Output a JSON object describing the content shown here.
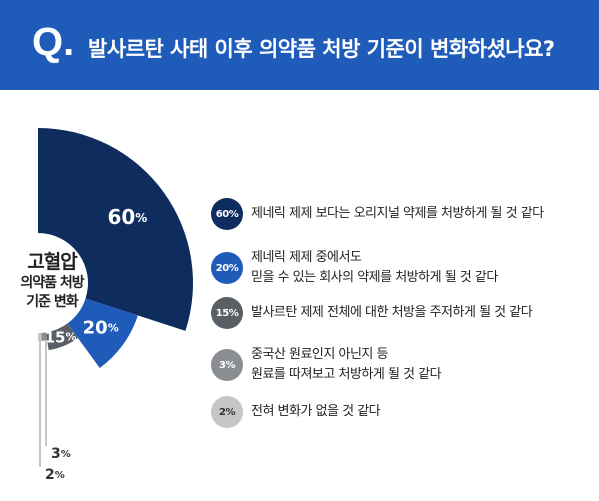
{
  "header": {
    "q_mark": "Q.",
    "title": "발사르탄 사태 이후 의약품 처방 기준이 변화하셨나요?"
  },
  "colors": {
    "header_bg": "#1f5cba",
    "series": [
      "#0e2c5e",
      "#1f5cba",
      "#5a5f66",
      "#8a8d91",
      "#c4c6c8"
    ]
  },
  "chart_data": {
    "type": "pie",
    "center_label": {
      "line1": "고혈압",
      "line2": "의약품 처방",
      "line3": "기준 변화"
    },
    "categories": [
      "제네릭 제제 보다는 오리지널 약제를 처방하게 될 것 같다",
      "제네릭 제제 중에서도\n믿을 수 있는 회사의 약제를 처방하게 될 것 같다",
      "발사르탄 제제 전체에 대한 처방을 주저하게 될 것 같다",
      "중국산 원료인지 아닌지 등\n원료를 따져보고 처방하게 될 것 같다",
      "전혀 변화가 없을 것 같다"
    ],
    "values": [
      60,
      20,
      15,
      3,
      2
    ],
    "value_labels": [
      "60",
      "20",
      "15",
      "3",
      "2"
    ],
    "legend_labels": [
      "60%",
      "20%",
      "15%",
      "3%",
      "2%"
    ],
    "unit": "%"
  }
}
